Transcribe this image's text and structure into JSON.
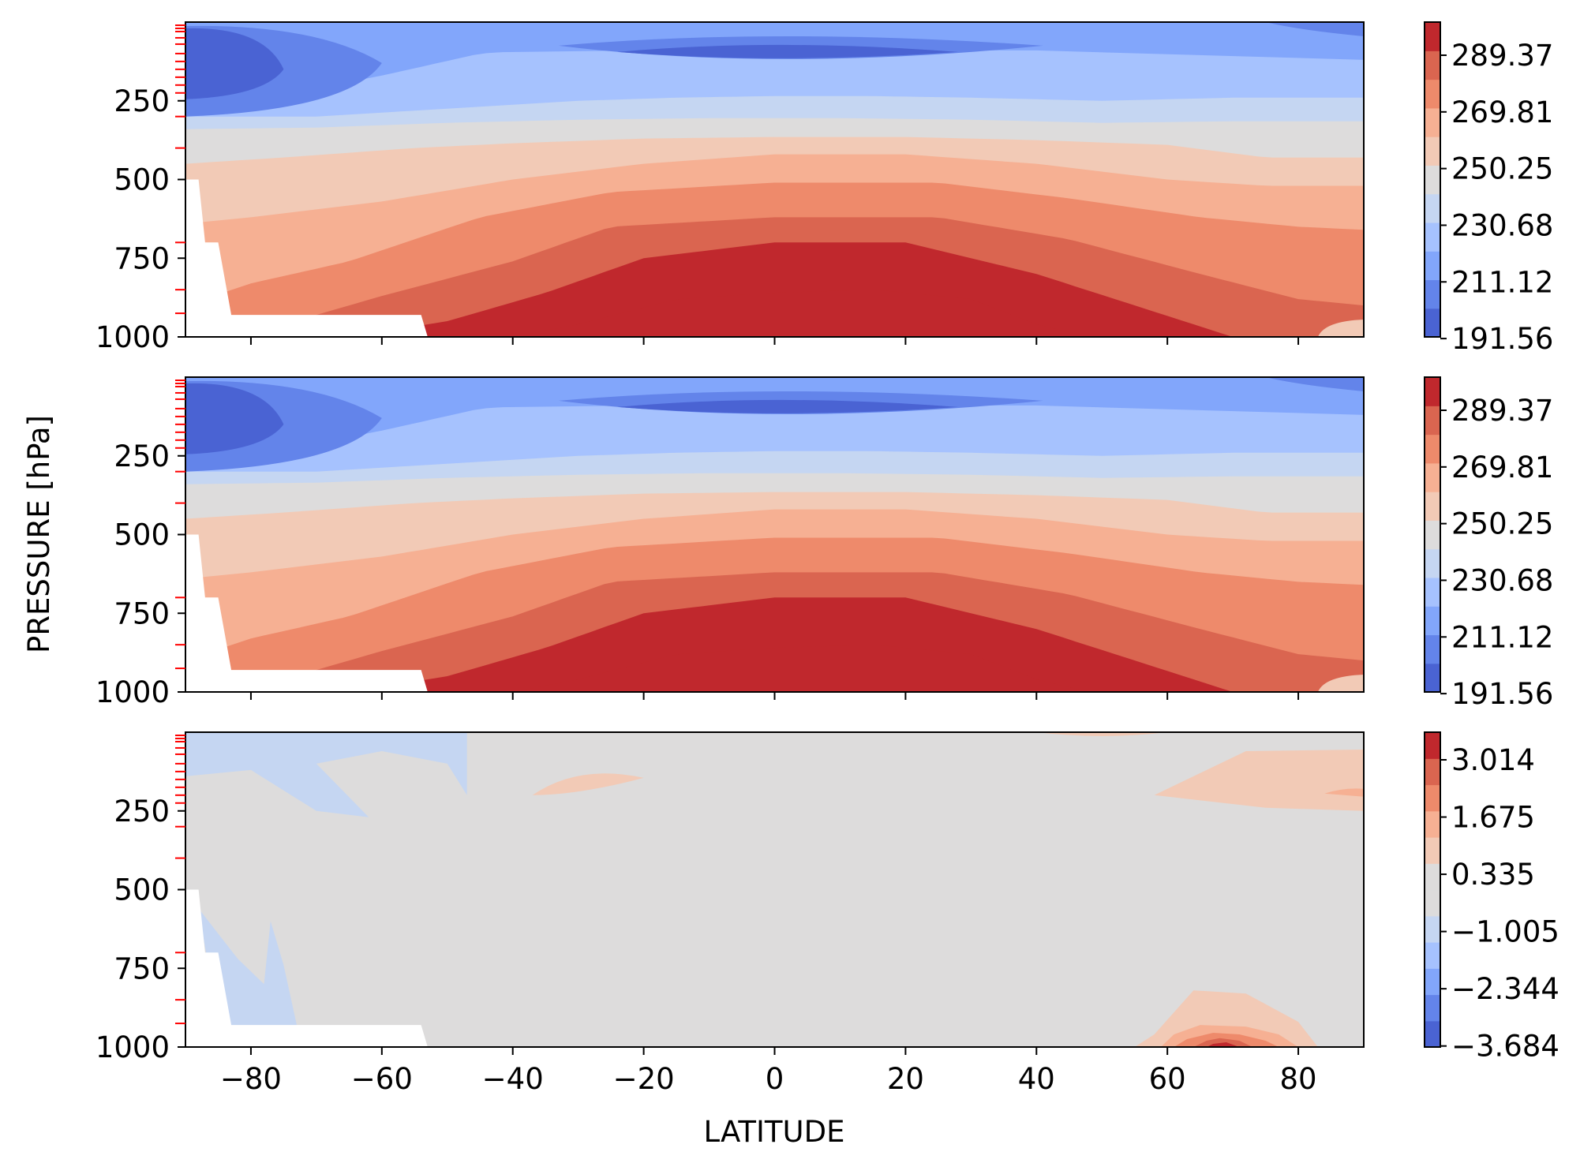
{
  "figure": {
    "ylabel": "PRESSURE [hPa]",
    "xlabel": "LATITUDE"
  },
  "chart_data": [
    {
      "type": "heatmap",
      "panel": "top",
      "colormap": "coolwarm",
      "x_ticks": [],
      "x_range": [
        -90,
        90
      ],
      "y_ticks": [
        "250",
        "500",
        "750",
        "1000"
      ],
      "y_tick_values": [
        250,
        500,
        750,
        1000
      ],
      "y_range": [
        1000,
        0
      ],
      "y_inverted": true,
      "colorbar_ticks": [
        "191.56",
        "211.12",
        "230.68",
        "250.25",
        "269.81",
        "289.37"
      ],
      "colorbar_range": [
        191.56,
        299.15
      ],
      "levels": 11,
      "colors": [
        "#4a63d3",
        "#6384ea",
        "#82a6fb",
        "#a6c2fe",
        "#c5d6f2",
        "#dddcdc",
        "#f2cab6",
        "#f6b093",
        "#ee8a6b",
        "#da6550",
        "#c0282d"
      ],
      "features": [
        {
          "name": "tropical tropopause cold core",
          "lat": [
            -22,
            28
          ],
          "p": [
            50,
            140
          ],
          "value_min": 191.56
        },
        {
          "name": "antarctic stratospheric cold core",
          "lat": [
            -90,
            -75
          ],
          "p": [
            20,
            250
          ],
          "value_min": 191.56
        },
        {
          "name": "tropical surface warm maximum",
          "lat": [
            -27,
            40
          ],
          "p": [
            830,
            1000
          ],
          "value_max": 299.15
        },
        {
          "name": "missing data below antarctic topography",
          "lat": [
            -90,
            -54
          ],
          "p": [
            930,
            1000
          ]
        }
      ]
    },
    {
      "type": "heatmap",
      "panel": "middle",
      "colormap": "coolwarm",
      "x_ticks": [],
      "x_range": [
        -90,
        90
      ],
      "y_ticks": [
        "250",
        "500",
        "750",
        "1000"
      ],
      "y_tick_values": [
        250,
        500,
        750,
        1000
      ],
      "y_range": [
        1000,
        0
      ],
      "y_inverted": true,
      "colorbar_ticks": [
        "191.56",
        "211.12",
        "230.68",
        "250.25",
        "269.81",
        "289.37"
      ],
      "colorbar_range": [
        191.56,
        299.15
      ],
      "levels": 11,
      "colors": [
        "#4a63d3",
        "#6384ea",
        "#82a6fb",
        "#a6c2fe",
        "#c5d6f2",
        "#dddcdc",
        "#f2cab6",
        "#f6b093",
        "#ee8a6b",
        "#da6550",
        "#c0282d"
      ],
      "features": [
        {
          "name": "tropical tropopause cold core",
          "lat": [
            -22,
            28
          ],
          "p": [
            50,
            140
          ],
          "value_min": 191.56
        },
        {
          "name": "antarctic stratospheric cold core",
          "lat": [
            -90,
            -75
          ],
          "p": [
            20,
            250
          ],
          "value_min": 191.56
        },
        {
          "name": "tropical surface warm maximum",
          "lat": [
            -27,
            40
          ],
          "p": [
            830,
            1000
          ],
          "value_max": 299.15
        },
        {
          "name": "missing data below antarctic topography",
          "lat": [
            -90,
            -54
          ],
          "p": [
            930,
            1000
          ]
        }
      ]
    },
    {
      "type": "heatmap",
      "panel": "bottom",
      "colormap": "coolwarm",
      "x_ticks": [
        "−80",
        "−60",
        "−40",
        "−20",
        "0",
        "20",
        "40",
        "60",
        "80"
      ],
      "x_tick_values": [
        -80,
        -60,
        -40,
        -20,
        0,
        20,
        40,
        60,
        80
      ],
      "x_range": [
        -90,
        90
      ],
      "y_ticks": [
        "250",
        "500",
        "750",
        "1000"
      ],
      "y_tick_values": [
        250,
        500,
        750,
        1000
      ],
      "y_range": [
        1000,
        0
      ],
      "y_inverted": true,
      "colorbar_ticks": [
        "3.014",
        "1.675",
        "0.335",
        "−1.005",
        "−2.344",
        "−3.684"
      ],
      "colorbar_range": [
        -3.684,
        4.354
      ],
      "levels": 12,
      "colors": [
        "#4a63d3",
        "#6384ea",
        "#82a6fb",
        "#a6c2fe",
        "#c5d6f2",
        "#dddcdc",
        "#dddcdc",
        "#f2cab6",
        "#f6b093",
        "#ee8a6b",
        "#da6550",
        "#c0282d"
      ],
      "features": [
        {
          "name": "antarctic negative difference",
          "lat": [
            -90,
            -47
          ],
          "p": [
            20,
            930
          ],
          "value": -1.0
        },
        {
          "name": "arctic upper positive difference",
          "lat": [
            58,
            90
          ],
          "p": [
            55,
            250
          ],
          "value": 0.9
        },
        {
          "name": "tropical upper positive difference",
          "lat": [
            -37,
            -18
          ],
          "p": [
            120,
            200
          ],
          "value": 0.9
        },
        {
          "name": "arctic surface positive maximum",
          "lat": [
            58,
            83
          ],
          "p": [
            820,
            1000
          ],
          "value_max": 4.35,
          "center_lat": 68
        },
        {
          "name": "missing data below antarctic topography",
          "lat": [
            -90,
            -54
          ],
          "p": [
            930,
            1000
          ]
        }
      ]
    }
  ]
}
